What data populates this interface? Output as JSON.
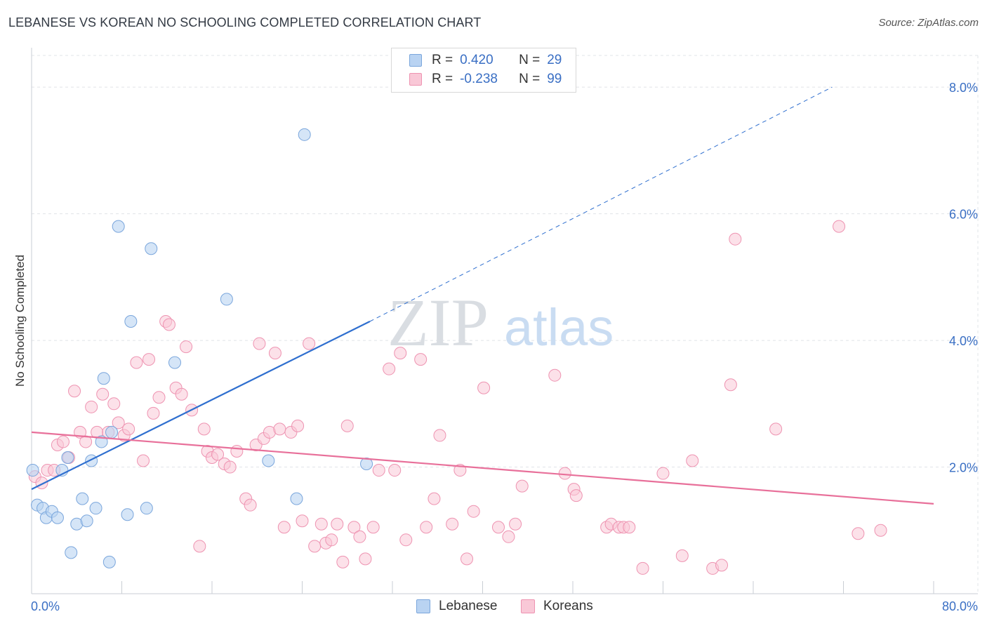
{
  "header": {
    "title": "LEBANESE VS KOREAN NO SCHOOLING COMPLETED CORRELATION CHART",
    "source": "Source: ZipAtlas.com"
  },
  "legend": {
    "lebanese": {
      "r_label": "R =",
      "r_value": "0.420",
      "n_label": "N =",
      "n_value": "29"
    },
    "koreans": {
      "r_label": "R =",
      "r_value": "-0.238",
      "n_label": "N =",
      "n_value": "99"
    }
  },
  "bottom_legend": {
    "lebanese": "Lebanese",
    "koreans": "Koreans"
  },
  "watermark": {
    "zip": "ZIP",
    "atlas": "atlas"
  },
  "colors": {
    "lebanese_fill": "#b9d3f2",
    "lebanese_stroke": "#7aa6dc",
    "lebanese_line": "#2f6fcf",
    "koreans_fill": "#f9c8d7",
    "koreans_stroke": "#ee93b1",
    "koreans_line": "#e8709a",
    "axis_text": "#3a6fc4"
  },
  "chart_data": {
    "type": "scatter",
    "title": "LEBANESE VS KOREAN NO SCHOOLING COMPLETED CORRELATION CHART",
    "xlabel": "",
    "ylabel": "No Schooling Completed",
    "xlim": [
      0,
      80
    ],
    "ylim": [
      0,
      8.6
    ],
    "x_tick_labels": [
      "0.0%",
      "80.0%"
    ],
    "y_ticks": [
      2,
      4,
      6,
      8
    ],
    "y_tick_labels": [
      "2.0%",
      "4.0%",
      "6.0%",
      "8.0%"
    ],
    "series": [
      {
        "name": "Lebanese",
        "r": 0.42,
        "n": 29,
        "trend": {
          "x0": 0,
          "y0": 1.65,
          "x1": 30,
          "y1": 4.3,
          "dashed_to_x": 71,
          "dashed_to_y": 8.0
        },
        "points": [
          [
            0.1,
            1.95
          ],
          [
            0.5,
            1.4
          ],
          [
            1.0,
            1.35
          ],
          [
            1.3,
            1.2
          ],
          [
            1.8,
            1.3
          ],
          [
            2.3,
            1.2
          ],
          [
            2.7,
            1.95
          ],
          [
            3.2,
            2.15
          ],
          [
            3.5,
            0.65
          ],
          [
            4.0,
            1.1
          ],
          [
            4.5,
            1.5
          ],
          [
            4.9,
            1.15
          ],
          [
            5.3,
            2.1
          ],
          [
            5.7,
            1.35
          ],
          [
            6.2,
            2.4
          ],
          [
            6.4,
            3.4
          ],
          [
            6.9,
            0.5
          ],
          [
            7.1,
            2.55
          ],
          [
            7.7,
            5.8
          ],
          [
            8.5,
            1.25
          ],
          [
            8.8,
            4.3
          ],
          [
            10.2,
            1.35
          ],
          [
            10.6,
            5.45
          ],
          [
            12.7,
            3.65
          ],
          [
            17.3,
            4.65
          ],
          [
            21.0,
            2.1
          ],
          [
            23.5,
            1.5
          ],
          [
            24.2,
            7.25
          ],
          [
            29.7,
            2.05
          ]
        ]
      },
      {
        "name": "Koreans",
        "r": -0.238,
        "n": 99,
        "trend": {
          "x0": 0,
          "y0": 2.55,
          "x1": 80,
          "y1": 1.42
        },
        "points": [
          [
            0.3,
            1.85
          ],
          [
            0.9,
            1.75
          ],
          [
            1.4,
            1.95
          ],
          [
            2.0,
            1.95
          ],
          [
            2.3,
            2.35
          ],
          [
            2.8,
            2.4
          ],
          [
            3.3,
            2.15
          ],
          [
            3.8,
            3.2
          ],
          [
            4.3,
            2.55
          ],
          [
            4.8,
            2.4
          ],
          [
            5.3,
            2.95
          ],
          [
            5.8,
            2.55
          ],
          [
            6.3,
            3.15
          ],
          [
            6.8,
            2.55
          ],
          [
            7.3,
            3.0
          ],
          [
            7.7,
            2.7
          ],
          [
            8.2,
            2.5
          ],
          [
            8.6,
            2.6
          ],
          [
            9.3,
            3.65
          ],
          [
            9.9,
            2.1
          ],
          [
            10.4,
            3.7
          ],
          [
            10.8,
            2.85
          ],
          [
            11.3,
            3.1
          ],
          [
            11.9,
            4.3
          ],
          [
            12.2,
            4.25
          ],
          [
            12.8,
            3.25
          ],
          [
            13.3,
            3.15
          ],
          [
            13.7,
            3.9
          ],
          [
            14.2,
            2.9
          ],
          [
            14.9,
            0.75
          ],
          [
            15.3,
            2.6
          ],
          [
            15.6,
            2.25
          ],
          [
            16.0,
            2.15
          ],
          [
            16.5,
            2.2
          ],
          [
            17.1,
            2.05
          ],
          [
            17.6,
            2.0
          ],
          [
            18.2,
            2.25
          ],
          [
            19.0,
            1.5
          ],
          [
            19.4,
            1.4
          ],
          [
            19.9,
            2.35
          ],
          [
            20.2,
            3.95
          ],
          [
            20.6,
            2.45
          ],
          [
            21.1,
            2.55
          ],
          [
            21.6,
            3.8
          ],
          [
            22.0,
            2.6
          ],
          [
            22.4,
            1.05
          ],
          [
            23.0,
            2.55
          ],
          [
            23.6,
            2.65
          ],
          [
            24.0,
            1.15
          ],
          [
            24.6,
            3.95
          ],
          [
            25.1,
            0.75
          ],
          [
            25.7,
            1.1
          ],
          [
            26.1,
            0.8
          ],
          [
            26.6,
            0.85
          ],
          [
            27.1,
            1.1
          ],
          [
            27.6,
            0.5
          ],
          [
            28.0,
            2.65
          ],
          [
            28.6,
            1.05
          ],
          [
            29.1,
            0.9
          ],
          [
            29.6,
            0.55
          ],
          [
            30.3,
            1.05
          ],
          [
            30.8,
            1.95
          ],
          [
            31.7,
            3.55
          ],
          [
            32.2,
            1.95
          ],
          [
            32.7,
            3.8
          ],
          [
            33.2,
            0.85
          ],
          [
            34.5,
            3.7
          ],
          [
            35.0,
            1.05
          ],
          [
            35.7,
            1.5
          ],
          [
            36.2,
            2.5
          ],
          [
            37.3,
            1.1
          ],
          [
            38.0,
            1.95
          ],
          [
            38.6,
            0.55
          ],
          [
            39.2,
            1.3
          ],
          [
            40.1,
            3.25
          ],
          [
            41.4,
            1.05
          ],
          [
            42.3,
            0.9
          ],
          [
            42.9,
            1.1
          ],
          [
            43.5,
            1.7
          ],
          [
            46.4,
            3.45
          ],
          [
            47.3,
            1.9
          ],
          [
            48.1,
            1.65
          ],
          [
            48.3,
            1.55
          ],
          [
            51.0,
            1.05
          ],
          [
            51.4,
            1.1
          ],
          [
            52.1,
            1.05
          ],
          [
            52.5,
            1.05
          ],
          [
            53.0,
            1.05
          ],
          [
            54.2,
            0.4
          ],
          [
            56.0,
            1.9
          ],
          [
            57.7,
            0.6
          ],
          [
            58.6,
            2.1
          ],
          [
            60.4,
            0.4
          ],
          [
            61.2,
            0.45
          ],
          [
            62.0,
            3.3
          ],
          [
            62.4,
            5.6
          ],
          [
            66.0,
            2.6
          ],
          [
            71.6,
            5.8
          ],
          [
            73.3,
            0.95
          ],
          [
            75.3,
            1.0
          ]
        ]
      }
    ]
  }
}
